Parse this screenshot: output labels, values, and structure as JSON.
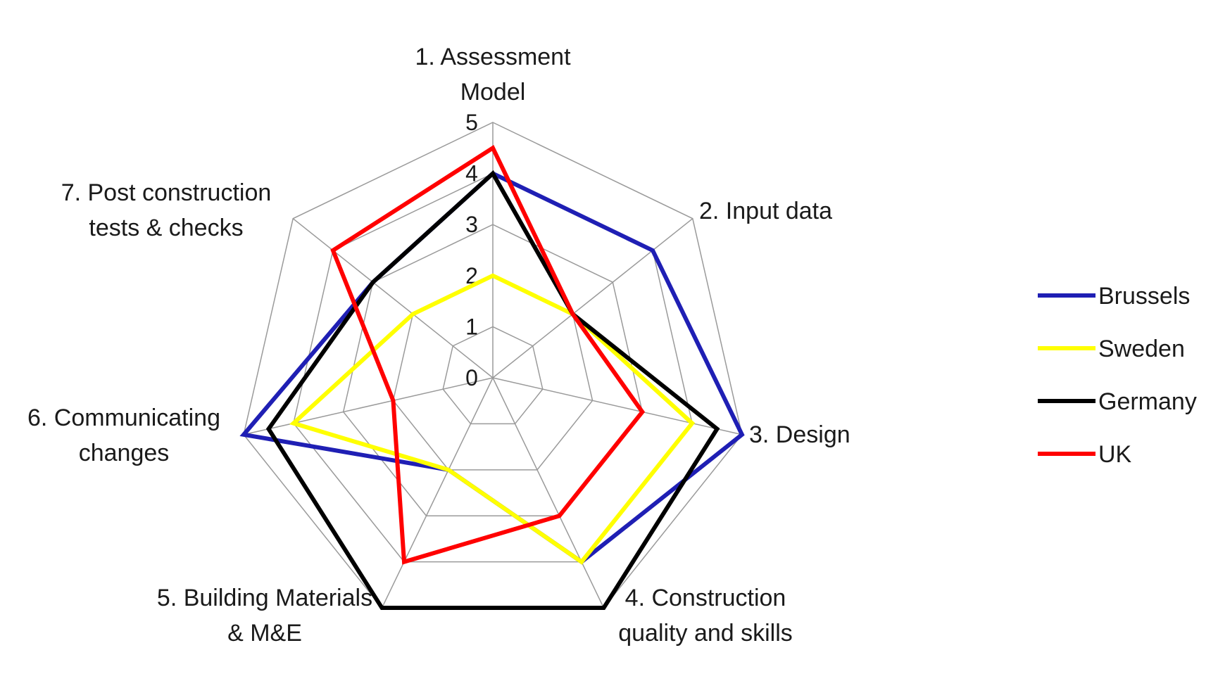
{
  "chart_data": {
    "type": "radar",
    "title": "",
    "axes": [
      [
        "1. Assessment",
        "Model"
      ],
      [
        "2. Input data"
      ],
      [
        "3. Design"
      ],
      [
        "4. Construction",
        "quality and skills"
      ],
      [
        "5. Building Materials",
        "& M&E"
      ],
      [
        "6. Communicating",
        "changes"
      ],
      [
        "7. Post construction",
        "tests & checks"
      ]
    ],
    "r_ticks": [
      0,
      1,
      2,
      3,
      4,
      5
    ],
    "r_range": [
      0,
      5
    ],
    "grid": true,
    "legend_position": "right",
    "series": [
      {
        "name": "Brussels",
        "color": "#1f1fb4",
        "values": [
          4,
          4,
          5,
          4,
          2,
          5,
          3
        ]
      },
      {
        "name": "Sweden",
        "color": "#ffff00",
        "values": [
          2,
          2,
          4,
          4,
          2,
          4,
          2
        ]
      },
      {
        "name": "Germany",
        "color": "#000000",
        "values": [
          4,
          2,
          4.5,
          5,
          5,
          4.5,
          3
        ]
      },
      {
        "name": "UK",
        "color": "#ff0000",
        "values": [
          4.5,
          2,
          3,
          3,
          4,
          2,
          4
        ]
      }
    ]
  }
}
